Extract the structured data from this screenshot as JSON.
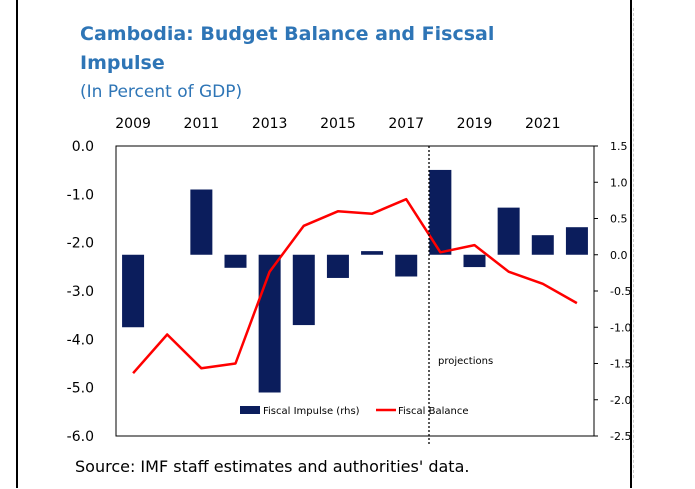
{
  "title": "Cambodia: Budget Balance and Fiscsal Impulse",
  "subtitle": "(In Percent of GDP)",
  "source": "Source: IMF staff estimates and authorities' data.",
  "annotation": "projections",
  "colors": {
    "title": "#2e75b6",
    "bar": "#0b1d5c",
    "line": "#ff0000"
  },
  "chart_data": {
    "type": "bar+line",
    "title": "Cambodia: Budget Balance and Fiscsal Impulse",
    "subtitle": "(In Percent of GDP)",
    "x": [
      2009,
      2010,
      2011,
      2012,
      2013,
      2014,
      2015,
      2016,
      2017,
      2018,
      2019,
      2020,
      2021,
      2022
    ],
    "x_tick_labels": [
      "2009",
      "2011",
      "2013",
      "2015",
      "2017",
      "2019",
      "2021"
    ],
    "left_ylim": [
      -6.0,
      0.0
    ],
    "left_tick_labels": [
      "0.0",
      "-1.0",
      "-2.0",
      "-3.0",
      "-4.0",
      "-5.0",
      "-6.0"
    ],
    "right_ylim": [
      -2.5,
      1.5
    ],
    "right_tick_labels": [
      "1.5",
      "1.0",
      "0.5",
      "0.0",
      "-0.5",
      "-1.0",
      "-1.5",
      "-2.0",
      "-2.5"
    ],
    "projection_start": 2018,
    "legend_position": "bottom-center",
    "series": [
      {
        "name": "Fiscal Impulse (rhs)",
        "kind": "bar",
        "axis": "right",
        "values": [
          -1.0,
          null,
          0.9,
          -0.18,
          -1.9,
          -0.97,
          -0.32,
          0.05,
          -0.3,
          1.17,
          -0.17,
          0.65,
          0.27,
          0.38
        ]
      },
      {
        "name": "Fiscal Balance",
        "kind": "line",
        "axis": "left",
        "values": [
          -4.7,
          -3.9,
          -4.6,
          -4.5,
          -2.6,
          -1.65,
          -1.35,
          -1.4,
          -1.1,
          -2.2,
          -2.05,
          -2.6,
          -2.85,
          -3.25
        ]
      }
    ]
  }
}
